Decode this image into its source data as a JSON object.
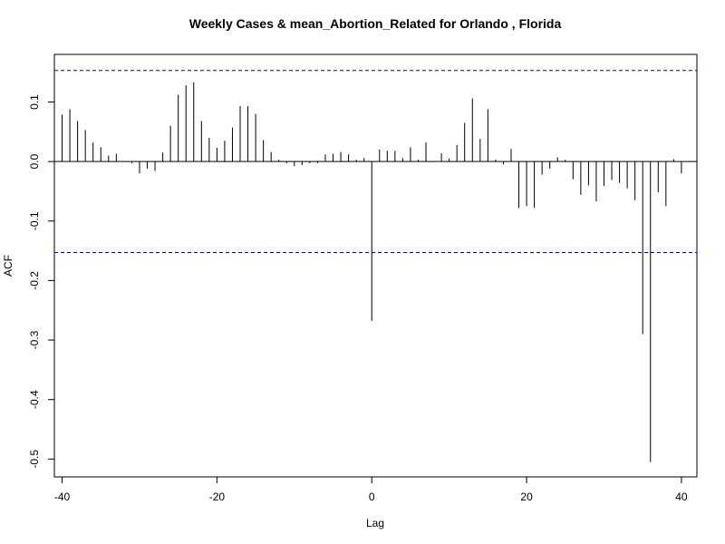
{
  "chart_data": {
    "type": "bar",
    "title": "Weekly Cases & mean_Abortion_Related for Orlando , Florida",
    "xlabel": "Lag",
    "ylabel": "ACF",
    "xlim": [
      -41,
      42
    ],
    "ylim": [
      -0.53,
      0.18
    ],
    "x_ticks": [
      -40,
      -20,
      0,
      20,
      40
    ],
    "x_tick_labels": [
      "-40",
      "-20",
      "0",
      "20",
      "40"
    ],
    "y_ticks": [
      -0.5,
      -0.4,
      -0.3,
      -0.2,
      -0.1,
      0.0,
      0.1
    ],
    "y_tick_labels": [
      "-0.5",
      "-0.4",
      "-0.3",
      "-0.2",
      "-0.1",
      "0.0",
      "0.1"
    ],
    "confidence_bounds": [
      0.153,
      -0.153
    ],
    "colors": {
      "bars": "#000000",
      "bounds": "#0000cc",
      "axis": "#000000"
    },
    "lags": [
      -40,
      -39,
      -38,
      -37,
      -36,
      -35,
      -34,
      -33,
      -32,
      -31,
      -30,
      -29,
      -28,
      -27,
      -26,
      -25,
      -24,
      -23,
      -22,
      -21,
      -20,
      -19,
      -18,
      -17,
      -16,
      -15,
      -14,
      -13,
      -12,
      -11,
      -10,
      -9,
      -8,
      -7,
      -6,
      -5,
      -4,
      -3,
      -2,
      -1,
      0,
      1,
      2,
      3,
      4,
      5,
      6,
      7,
      8,
      9,
      10,
      11,
      12,
      13,
      14,
      15,
      16,
      17,
      18,
      19,
      20,
      21,
      22,
      23,
      24,
      25,
      26,
      27,
      28,
      29,
      30,
      31,
      32,
      33,
      34,
      35,
      36,
      37,
      38,
      39,
      40
    ],
    "acf": [
      0.079,
      0.088,
      0.068,
      0.053,
      0.032,
      0.024,
      0.01,
      0.013,
      0.0,
      -0.003,
      -0.02,
      -0.012,
      -0.016,
      0.015,
      0.06,
      0.112,
      0.128,
      0.133,
      0.068,
      0.04,
      0.023,
      0.035,
      0.057,
      0.093,
      0.093,
      0.08,
      0.036,
      0.016,
      0.003,
      -0.003,
      -0.008,
      -0.006,
      -0.003,
      -0.003,
      0.012,
      0.013,
      0.016,
      0.012,
      0.003,
      0.006,
      -0.268,
      0.02,
      0.018,
      0.018,
      0.006,
      0.024,
      0.003,
      0.032,
      0.0,
      0.014,
      0.005,
      0.028,
      0.065,
      0.106,
      0.038,
      0.088,
      0.003,
      -0.005,
      0.021,
      -0.078,
      -0.075,
      -0.078,
      -0.022,
      -0.012,
      0.007,
      0.003,
      -0.03,
      -0.056,
      -0.04,
      -0.067,
      -0.041,
      -0.031,
      -0.036,
      -0.045,
      -0.065,
      -0.29,
      -0.505,
      -0.052,
      -0.075,
      0.004,
      -0.02
    ]
  }
}
